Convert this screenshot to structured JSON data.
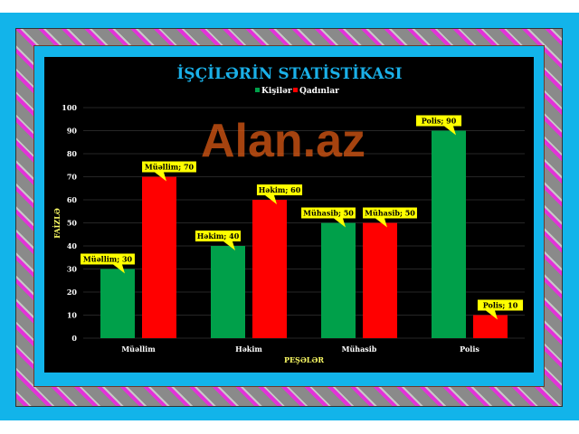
{
  "chart_data": {
    "type": "bar",
    "title": "İŞÇİLƏRİN STATİSTİKASI",
    "xlabel": "PEŞƏLƏR",
    "ylabel": "FAİZLƏ",
    "categories": [
      "Müəllim",
      "Həkim",
      "Mühasib",
      "Polis"
    ],
    "series": [
      {
        "name": "Kişilər",
        "color": "#00a04a",
        "values": [
          30,
          40,
          50,
          90
        ]
      },
      {
        "name": "Qadınlar",
        "color": "#ff0000",
        "values": [
          70,
          60,
          50,
          10
        ]
      }
    ],
    "ylim": [
      0,
      100
    ],
    "yticks": [
      0,
      10,
      20,
      30,
      40,
      50,
      60,
      70,
      80,
      90,
      100
    ],
    "grid": true,
    "legend": "top",
    "data_labels": true
  },
  "watermark": "Alan.az"
}
